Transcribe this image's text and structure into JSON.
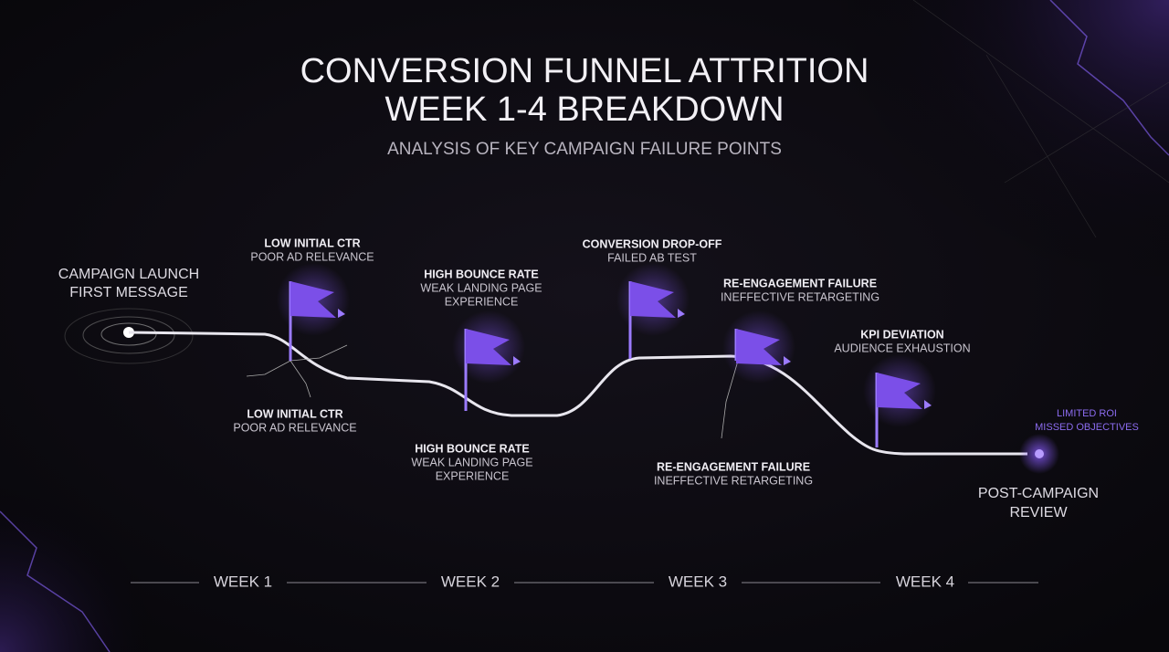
{
  "header": {
    "title": [
      "CONVERSION FUNNEL ATTRITION",
      "WEEK 1-4 BREAKDOWN"
    ],
    "subtitle": "ANALYSIS OF KEY CAMPAIGN FAILURE POINTS"
  },
  "start": {
    "lines": [
      "CAMPAIGN LAUNCH",
      "FIRST MESSAGE"
    ]
  },
  "flags": [
    {
      "title": "LOW INITIAL CTR",
      "lines": [
        "POOR AD RELEVANCE"
      ]
    },
    {
      "title": "HIGH BOUNCE RATE",
      "lines": [
        "WEAK LANDING PAGE",
        "EXPERIENCE"
      ]
    },
    {
      "title": "CONVERSION DROP-OFF",
      "lines": [
        "FAILED AB TEST"
      ]
    },
    {
      "title": "RE-ENGAGEMENT FAILURE",
      "lines": [
        "INEFFECTIVE RETARGETING"
      ]
    },
    {
      "title": "KPI DEVIATION",
      "lines": [
        "AUDIENCE EXHAUSTION"
      ]
    }
  ],
  "below_labels": [
    {
      "title": "LOW INITIAL CTR",
      "lines": [
        "POOR AD RELEVANCE"
      ]
    },
    {
      "title": "HIGH BOUNCE RATE",
      "lines": [
        "WEAK LANDING PAGE",
        "EXPERIENCE"
      ]
    },
    {
      "title": "RE-ENGAGEMENT FAILURE",
      "lines": [
        "INEFFECTIVE RETARGETING"
      ]
    }
  ],
  "end": {
    "outcome": [
      "LIMITED ROI",
      "MISSED OBJECTIVES"
    ],
    "lines": [
      "POST-CAMPAIGN",
      "REVIEW"
    ]
  },
  "timeline": [
    "WEEK 1",
    "WEEK 2",
    "WEEK 3",
    "WEEK 4"
  ]
}
